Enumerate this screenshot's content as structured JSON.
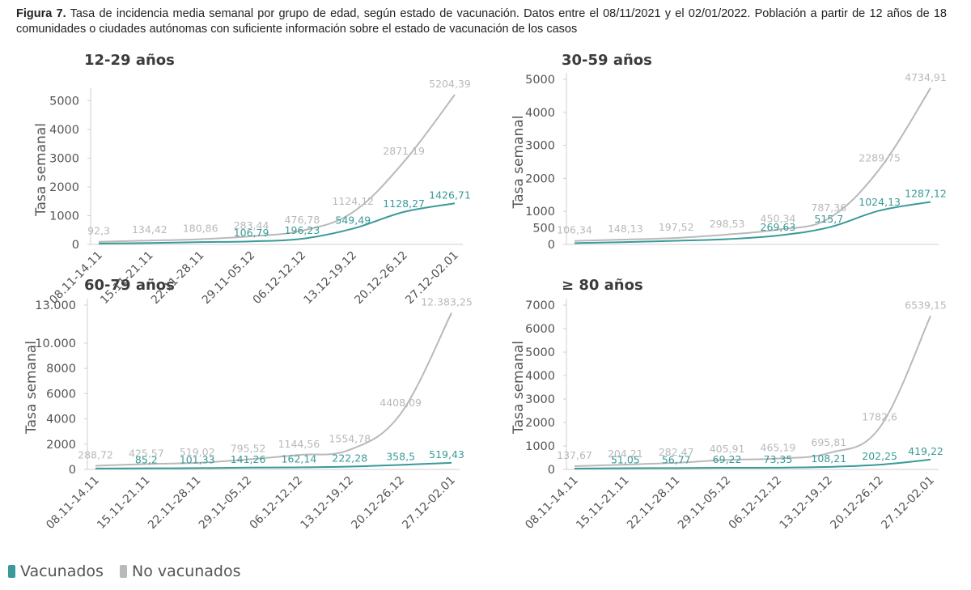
{
  "caption": {
    "label": "Figura 7.",
    "text": " Tasa de incidencia media semanal por grupo de edad, según estado de vacunación. Datos entre el 08/11/2021 y el 02/01/2022. Población a partir de 12 años de 18 comunidades o ciudades autónomas con suficiente información sobre el estado de vacunación de los casos"
  },
  "colors": {
    "vacunados": "#3a9a98",
    "no_vacunados": "#b9b9b9",
    "axis": "#cfcfcf",
    "tick_text": "#555555"
  },
  "legend": [
    {
      "name": "Vacunados",
      "color": "#3a9a98"
    },
    {
      "name": "No vacunados",
      "color": "#b9b9b9"
    }
  ],
  "chart_data": [
    {
      "type": "line",
      "title": "12-29 años",
      "ylabel": "Tasa semanal",
      "ylim": [
        0,
        5204.39
      ],
      "yticks": [
        0,
        1000,
        2000,
        3000,
        4000,
        5000
      ],
      "ytick_labels": [
        "0",
        "1000",
        "2000",
        "3000",
        "4000",
        "5000"
      ],
      "categories": [
        "08.11-14.11",
        "15.11-21.11",
        "22.11-28.11",
        "29.11-05.12",
        "06.12-12.12",
        "13.12-19.12",
        "20.12-26.12",
        "27.12-02.01"
      ],
      "series": [
        {
          "name": "No vacunados",
          "values": [
            92.3,
            134.42,
            180.86,
            283.44,
            476.78,
            1124.12,
            2871.19,
            5204.39
          ],
          "labels": [
            "92,3",
            "134,42",
            "180,86",
            "283,44",
            "476,78",
            "1124,12",
            "2871,19",
            "5204,39"
          ]
        },
        {
          "name": "Vacunados",
          "values": [
            30,
            50,
            80,
            106.79,
            196.23,
            549.49,
            1128.27,
            1426.71
          ],
          "labels": [
            "",
            "",
            "",
            "106,79",
            "196,23",
            "549,49",
            "1128,27",
            "1426,71"
          ]
        }
      ]
    },
    {
      "type": "line",
      "title": "30-59 años",
      "ylabel": "Tasa semanal",
      "ylim": [
        0,
        5000
      ],
      "yticks": [
        0,
        500,
        1000,
        2000,
        3000,
        4000,
        5000
      ],
      "ytick_labels": [
        "0",
        "500",
        "1000",
        "2000",
        "3000",
        "4000",
        "5000"
      ],
      "categories": [
        "08.11-14.11",
        "15.11-21.11",
        "22.11-28.11",
        "29.11-05.12",
        "06.12-12.12",
        "13.12-19.12",
        "20.12-26.12",
        "27.12-02.01"
      ],
      "series": [
        {
          "name": "No vacunados",
          "values": [
            106.34,
            148.13,
            197.52,
            298.53,
            450.34,
            787.36,
            2289.75,
            4734.91
          ],
          "labels": [
            "106,34",
            "148,13",
            "197,52",
            "298,53",
            "450,34",
            "787,36",
            "2289,75",
            "4734,91"
          ]
        },
        {
          "name": "Vacunados",
          "values": [
            40,
            70,
            110,
            160,
            269.63,
            515.7,
            1024.13,
            1287.12
          ],
          "labels": [
            "",
            "",
            "",
            "",
            "269,63",
            "515,7",
            "1024,13",
            "1287,12"
          ]
        }
      ]
    },
    {
      "type": "line",
      "title": "60-79 años",
      "ylabel": "Tasa semanal",
      "ylim": [
        0,
        13000
      ],
      "yticks": [
        0,
        2000,
        4000,
        6000,
        8000,
        10000,
        13000
      ],
      "ytick_labels": [
        "0",
        "2000",
        "4000",
        "6000",
        "8000",
        "10.000",
        "13.000"
      ],
      "categories": [
        "08.11-14.11",
        "15.11-21.11",
        "22.11-28.11",
        "29.11-05.12",
        "06.12-12.12",
        "13.12-19.12",
        "20.12-26.12",
        "27.12-02.01"
      ],
      "series": [
        {
          "name": "No vacunados",
          "values": [
            288.72,
            425.57,
            519.02,
            795.52,
            1144.56,
            1554.78,
            4408.09,
            12383.25
          ],
          "labels": [
            "288,72",
            "425,57",
            "519,02",
            "795,52",
            "1144,56",
            "1554,78",
            "4408,09",
            "12.383,25"
          ]
        },
        {
          "name": "Vacunados",
          "values": [
            70,
            85.2,
            101.33,
            141.26,
            162.14,
            222.28,
            358.5,
            519.43
          ],
          "labels": [
            "",
            "85,2",
            "101,33",
            "141,26",
            "162,14",
            "222,28",
            "358,5",
            "519,43"
          ]
        }
      ]
    },
    {
      "type": "line",
      "title": "≥ 80 años",
      "ylabel": "Tasa semanal",
      "ylim": [
        0,
        7000
      ],
      "yticks": [
        0,
        1000,
        2000,
        3000,
        4000,
        5000,
        6000,
        7000
      ],
      "ytick_labels": [
        "0",
        "1000",
        "2000",
        "3000",
        "4000",
        "5000",
        "6000",
        "7000"
      ],
      "categories": [
        "08.11-14.11",
        "15.11-21.11",
        "22.11-28.11",
        "29.11-05.12",
        "06.12-12.12",
        "13.12-19.12",
        "20.12-26.12",
        "27.12-02.01"
      ],
      "series": [
        {
          "name": "No vacunados",
          "values": [
            137.67,
            204.21,
            282.47,
            405.91,
            465.19,
            695.81,
            1782.6,
            6539.15
          ],
          "labels": [
            "137,67",
            "204,21",
            "282,47",
            "405,91",
            "465,19",
            "695,81",
            "1782,6",
            "6539,15"
          ]
        },
        {
          "name": "Vacunados",
          "values": [
            35,
            51.05,
            56.77,
            69.22,
            73.35,
            108.21,
            202.25,
            419.22
          ],
          "labels": [
            "",
            "51,05",
            "56,77",
            "69,22",
            "73,35",
            "108,21",
            "202,25",
            "419,22"
          ]
        }
      ]
    }
  ]
}
